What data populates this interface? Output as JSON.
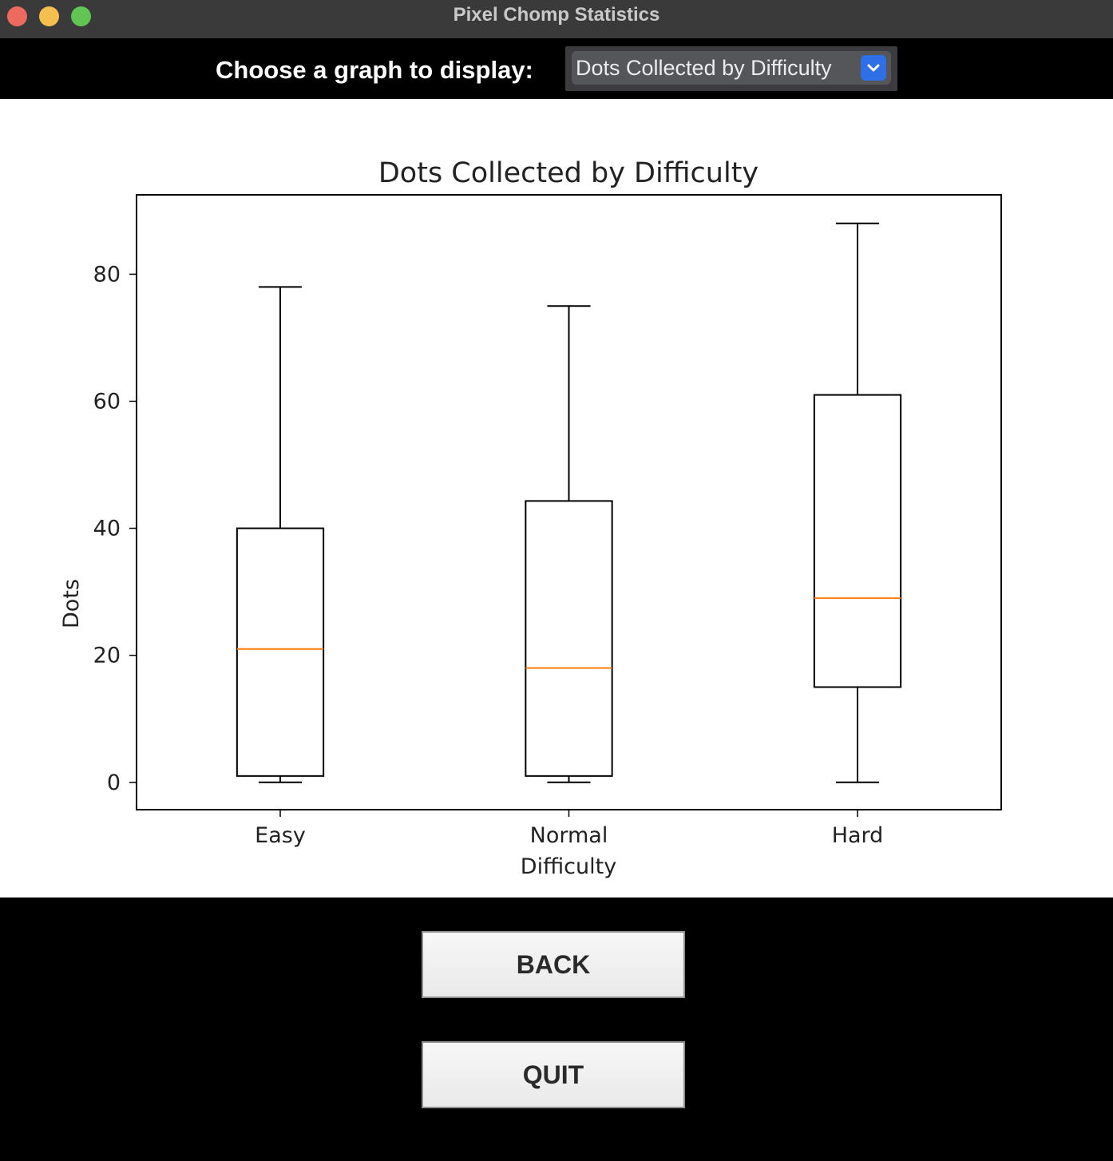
{
  "window": {
    "title": "Pixel Chomp Statistics"
  },
  "selector": {
    "label": "Choose a graph to display:",
    "value": "Dots Collected by Difficulty"
  },
  "buttons": {
    "back": "BACK",
    "quit": "QUIT"
  },
  "colors": {
    "median": "#ff7f0e",
    "box": "#000000",
    "select_arrow": "#2f6fe6"
  },
  "icons": {
    "dropdown": "chevron-down-icon"
  },
  "chart_data": {
    "type": "box",
    "title": "Dots Collected by Difficulty",
    "xlabel": "Difficulty",
    "ylabel": "Dots",
    "ylim": [
      -4.3,
      92.5
    ],
    "yticks": [
      0,
      20,
      40,
      60,
      80
    ],
    "grid": false,
    "categories": [
      "Easy",
      "Normal",
      "Hard"
    ],
    "boxes": [
      {
        "category": "Easy",
        "whisker_low": 0,
        "q1": 1,
        "median": 21,
        "q3": 40,
        "whisker_high": 78
      },
      {
        "category": "Normal",
        "whisker_low": 0,
        "q1": 1,
        "median": 18,
        "q3": 44.3,
        "whisker_high": 75
      },
      {
        "category": "Hard",
        "whisker_low": 0,
        "q1": 15,
        "median": 29,
        "q3": 61,
        "whisker_high": 88
      }
    ]
  }
}
